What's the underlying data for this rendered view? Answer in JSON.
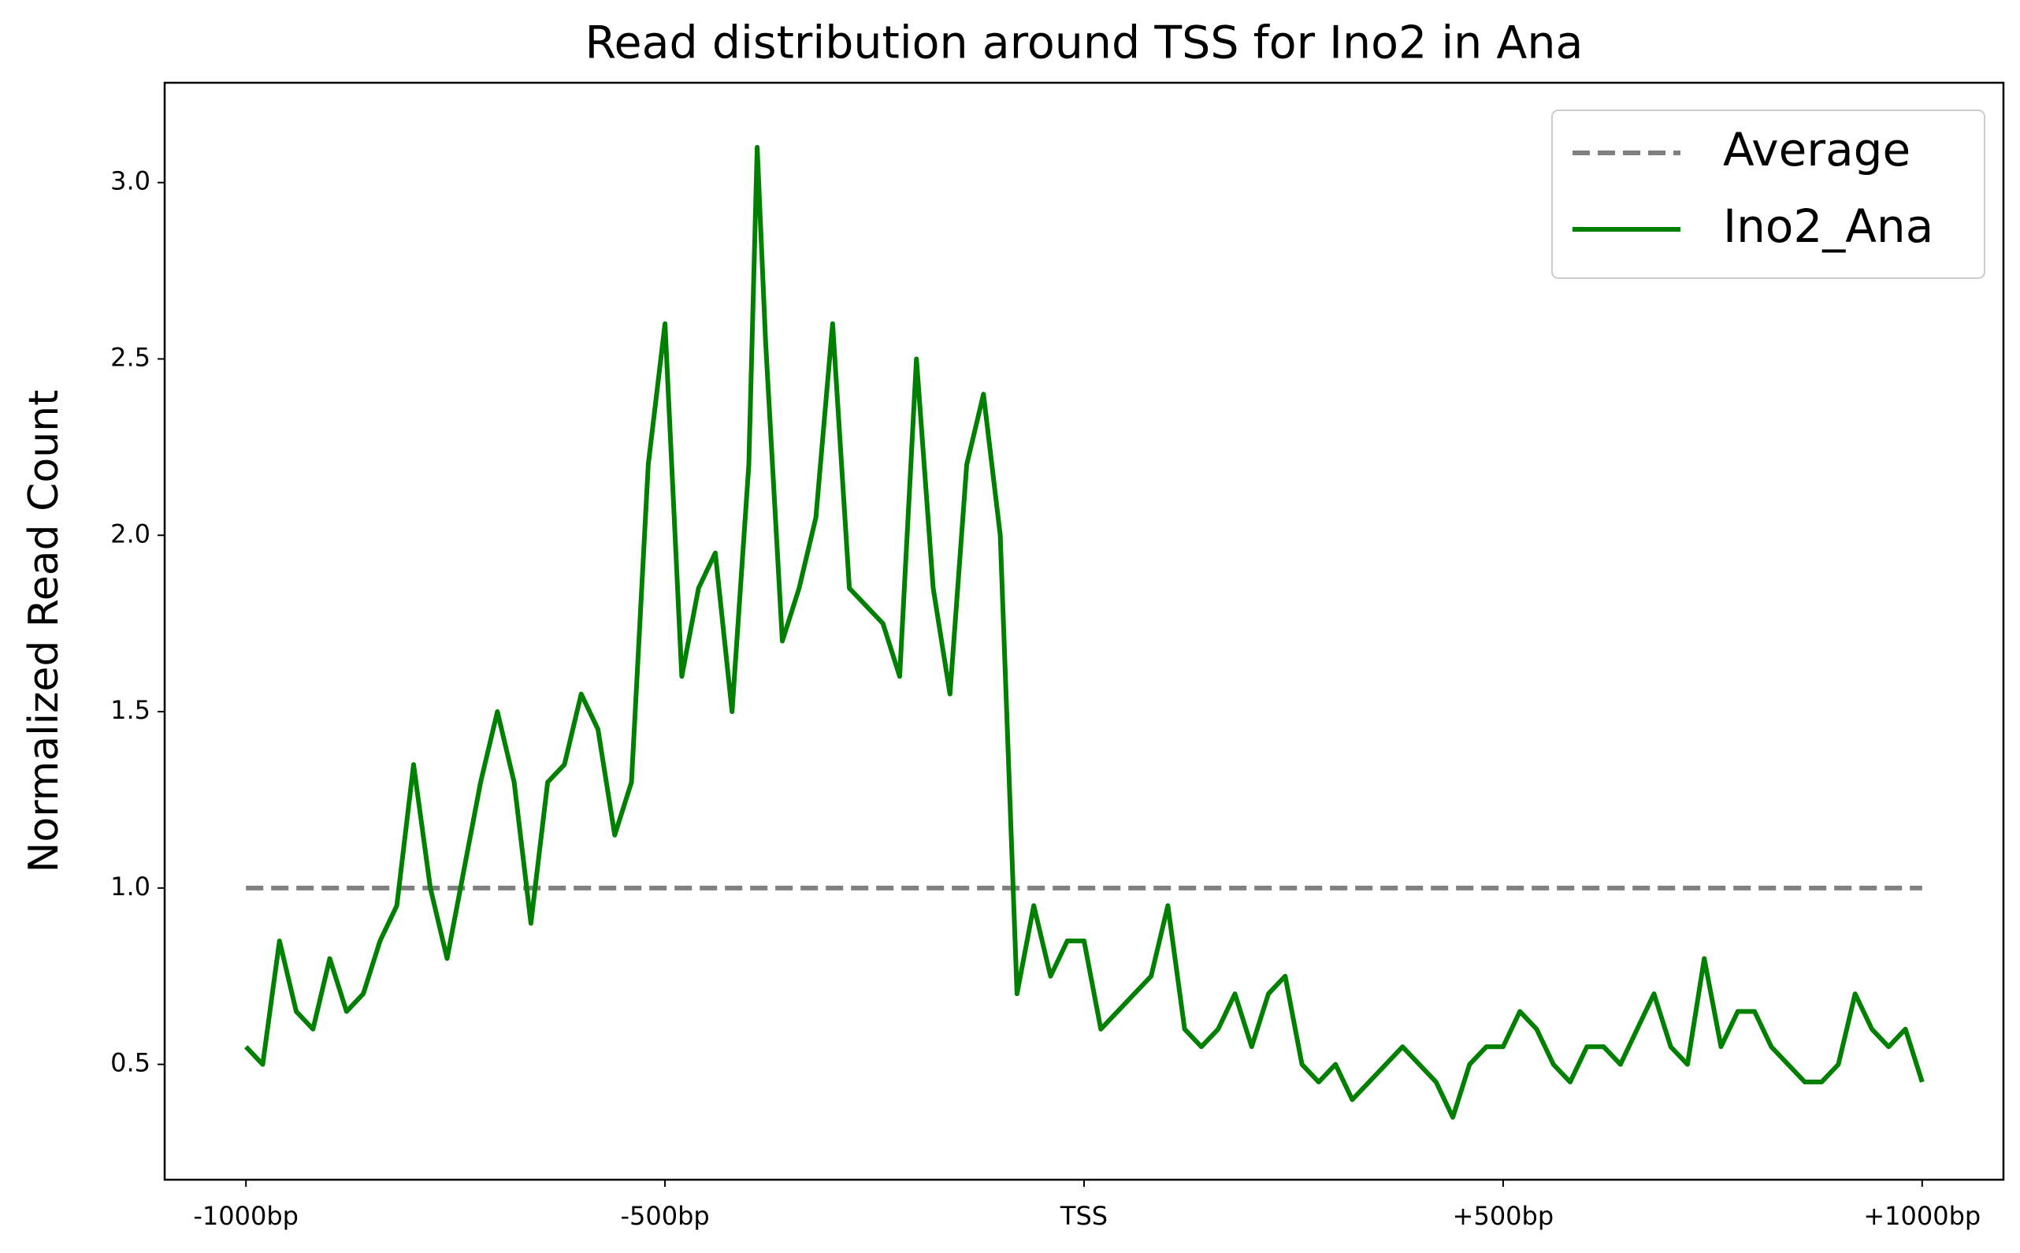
{
  "chart_data": {
    "type": "line",
    "title": "Read distribution around TSS for Ino2 in Ana",
    "y_label": "Normalized Read Count",
    "xlim": [
      -1097,
      1097
    ],
    "ylim": [
      0.173,
      3.283
    ],
    "xticks": [
      {
        "value": -1000,
        "label": "-1000bp"
      },
      {
        "value": -500,
        "label": "-500bp"
      },
      {
        "value": 0,
        "label": "TSS"
      },
      {
        "value": 500,
        "label": "+500bp"
      },
      {
        "value": 1000,
        "label": "+1000bp"
      }
    ],
    "yticks": [
      {
        "value": 0.5,
        "label": "0.5"
      },
      {
        "value": 1.0,
        "label": "1.0"
      },
      {
        "value": 1.5,
        "label": "1.5"
      },
      {
        "value": 2.0,
        "label": "2.0"
      },
      {
        "value": 2.5,
        "label": "2.5"
      },
      {
        "value": 3.0,
        "label": "3.0"
      }
    ],
    "grid": false,
    "legend": "upper right",
    "series": [
      {
        "name": "Average",
        "color": "#808080",
        "dashed": true,
        "x": [
          -1000,
          1000
        ],
        "values": [
          1.0,
          1.0
        ]
      },
      {
        "name": "Ino2_Ana",
        "color": "#008000",
        "dashed": false,
        "x": [
          -1000,
          -980,
          -960,
          -940,
          -920,
          -900,
          -880,
          -860,
          -840,
          -820,
          -800,
          -780,
          -760,
          -740,
          -720,
          -700,
          -680,
          -660,
          -640,
          -620,
          -600,
          -580,
          -560,
          -540,
          -520,
          -500,
          -480,
          -460,
          -440,
          -420,
          -400,
          -390,
          -380,
          -360,
          -340,
          -320,
          -300,
          -280,
          -260,
          -240,
          -220,
          -200,
          -180,
          -160,
          -140,
          -120,
          -100,
          -80,
          -60,
          -40,
          -20,
          0,
          20,
          40,
          60,
          80,
          100,
          120,
          140,
          160,
          180,
          200,
          220,
          240,
          260,
          280,
          300,
          320,
          340,
          360,
          380,
          400,
          420,
          440,
          460,
          480,
          500,
          520,
          540,
          560,
          580,
          600,
          620,
          640,
          660,
          680,
          700,
          720,
          740,
          760,
          780,
          800,
          820,
          840,
          860,
          880,
          900,
          920,
          940,
          960,
          980,
          1000
        ],
        "values": [
          0.55,
          0.5,
          0.85,
          0.65,
          0.6,
          0.8,
          0.65,
          0.7,
          0.85,
          0.95,
          1.35,
          1.0,
          0.8,
          1.05,
          1.3,
          1.5,
          1.3,
          0.9,
          1.3,
          1.35,
          1.55,
          1.45,
          1.15,
          1.3,
          2.2,
          2.6,
          1.6,
          1.85,
          1.95,
          1.5,
          2.2,
          3.1,
          2.55,
          1.7,
          1.85,
          2.05,
          2.6,
          1.85,
          1.8,
          1.75,
          1.6,
          2.5,
          1.85,
          1.55,
          2.2,
          2.4,
          2.0,
          0.7,
          0.95,
          0.75,
          0.85,
          0.85,
          0.6,
          0.65,
          0.7,
          0.75,
          0.95,
          0.6,
          0.55,
          0.6,
          0.7,
          0.55,
          0.7,
          0.75,
          0.5,
          0.45,
          0.5,
          0.4,
          0.45,
          0.5,
          0.55,
          0.5,
          0.45,
          0.35,
          0.5,
          0.55,
          0.55,
          0.65,
          0.6,
          0.5,
          0.45,
          0.55,
          0.55,
          0.5,
          0.6,
          0.7,
          0.55,
          0.5,
          0.8,
          0.55,
          0.65,
          0.65,
          0.55,
          0.5,
          0.45,
          0.45,
          0.5,
          0.7,
          0.6,
          0.55,
          0.6,
          0.45
        ]
      }
    ]
  }
}
